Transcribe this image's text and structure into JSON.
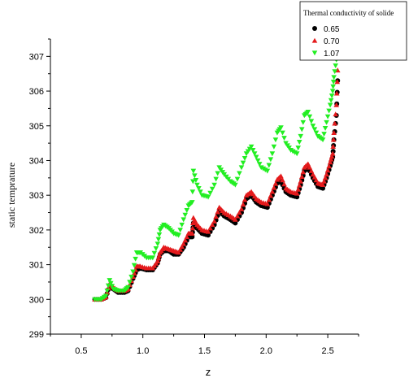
{
  "chart_data": {
    "type": "scatter",
    "xlabel": "z",
    "ylabel": "static temprature",
    "xlim": [
      0.25,
      2.75
    ],
    "ylim": [
      299,
      307.5
    ],
    "x_ticks": [
      "0.5",
      "1.0",
      "1.5",
      "2.0",
      "2.5"
    ],
    "y_ticks": [
      "299",
      "300",
      "301",
      "302",
      "303",
      "304",
      "305",
      "306",
      "307"
    ],
    "grid": false,
    "legend": {
      "title": "Thermal conductivity of solide",
      "placement": "top-right"
    },
    "series": [
      {
        "name": "0.65",
        "color": "#000000",
        "marker": "circle",
        "points": [
          [
            0.61,
            300.0
          ],
          [
            0.66,
            300.0
          ],
          [
            0.7,
            300.05
          ],
          [
            0.73,
            300.4
          ],
          [
            0.76,
            300.3
          ],
          [
            0.8,
            300.2
          ],
          [
            0.85,
            300.2
          ],
          [
            0.88,
            300.25
          ],
          [
            0.92,
            300.6
          ],
          [
            0.95,
            300.85
          ],
          [
            0.98,
            300.9
          ],
          [
            1.03,
            300.85
          ],
          [
            1.08,
            300.85
          ],
          [
            1.12,
            301.05
          ],
          [
            1.14,
            301.3
          ],
          [
            1.17,
            301.4
          ],
          [
            1.21,
            301.4
          ],
          [
            1.25,
            301.3
          ],
          [
            1.29,
            301.3
          ],
          [
            1.33,
            301.5
          ],
          [
            1.37,
            301.8
          ],
          [
            1.4,
            301.8
          ],
          [
            1.41,
            302.2
          ],
          [
            1.44,
            302.05
          ],
          [
            1.48,
            301.9
          ],
          [
            1.53,
            301.85
          ],
          [
            1.58,
            302.15
          ],
          [
            1.62,
            302.55
          ],
          [
            1.66,
            302.4
          ],
          [
            1.71,
            302.3
          ],
          [
            1.75,
            302.2
          ],
          [
            1.8,
            302.5
          ],
          [
            1.84,
            302.9
          ],
          [
            1.88,
            303.0
          ],
          [
            1.92,
            302.8
          ],
          [
            1.96,
            302.7
          ],
          [
            2.01,
            302.65
          ],
          [
            2.05,
            303.0
          ],
          [
            2.09,
            303.35
          ],
          [
            2.12,
            303.4
          ],
          [
            2.16,
            303.1
          ],
          [
            2.2,
            303.0
          ],
          [
            2.25,
            302.95
          ],
          [
            2.28,
            303.3
          ],
          [
            2.31,
            303.7
          ],
          [
            2.34,
            303.8
          ],
          [
            2.38,
            303.5
          ],
          [
            2.42,
            303.25
          ],
          [
            2.46,
            303.2
          ],
          [
            2.49,
            303.5
          ],
          [
            2.52,
            303.85
          ],
          [
            2.54,
            304.1
          ],
          [
            2.55,
            304.6
          ],
          [
            2.57,
            305.3
          ],
          [
            2.58,
            306.3
          ]
        ]
      },
      {
        "name": "0.70",
        "color": "#e41a1c",
        "marker": "triangle-up",
        "points": [
          [
            0.61,
            300.0
          ],
          [
            0.66,
            300.0
          ],
          [
            0.7,
            300.07
          ],
          [
            0.73,
            300.45
          ],
          [
            0.76,
            300.35
          ],
          [
            0.8,
            300.25
          ],
          [
            0.85,
            300.25
          ],
          [
            0.88,
            300.3
          ],
          [
            0.92,
            300.65
          ],
          [
            0.95,
            300.95
          ],
          [
            0.98,
            300.95
          ],
          [
            1.03,
            300.9
          ],
          [
            1.08,
            300.9
          ],
          [
            1.12,
            301.1
          ],
          [
            1.14,
            301.35
          ],
          [
            1.17,
            301.5
          ],
          [
            1.21,
            301.45
          ],
          [
            1.25,
            301.4
          ],
          [
            1.29,
            301.35
          ],
          [
            1.33,
            301.6
          ],
          [
            1.37,
            301.9
          ],
          [
            1.4,
            301.9
          ],
          [
            1.41,
            302.35
          ],
          [
            1.44,
            302.15
          ],
          [
            1.48,
            302.0
          ],
          [
            1.53,
            301.95
          ],
          [
            1.58,
            302.25
          ],
          [
            1.62,
            302.65
          ],
          [
            1.66,
            302.5
          ],
          [
            1.71,
            302.4
          ],
          [
            1.75,
            302.3
          ],
          [
            1.8,
            302.6
          ],
          [
            1.84,
            303.0
          ],
          [
            1.88,
            303.1
          ],
          [
            1.92,
            302.9
          ],
          [
            1.96,
            302.8
          ],
          [
            2.01,
            302.75
          ],
          [
            2.05,
            303.1
          ],
          [
            2.09,
            303.45
          ],
          [
            2.12,
            303.55
          ],
          [
            2.16,
            303.2
          ],
          [
            2.2,
            303.1
          ],
          [
            2.25,
            303.05
          ],
          [
            2.28,
            303.4
          ],
          [
            2.31,
            303.8
          ],
          [
            2.34,
            303.9
          ],
          [
            2.38,
            303.6
          ],
          [
            2.42,
            303.35
          ],
          [
            2.46,
            303.3
          ],
          [
            2.49,
            303.6
          ],
          [
            2.52,
            303.95
          ],
          [
            2.54,
            304.2
          ],
          [
            2.55,
            304.8
          ],
          [
            2.57,
            305.6
          ],
          [
            2.58,
            306.6
          ]
        ]
      },
      {
        "name": "1.07",
        "color": "#22ee22",
        "marker": "triangle-down",
        "points": [
          [
            0.61,
            300.0
          ],
          [
            0.66,
            300.0
          ],
          [
            0.7,
            300.1
          ],
          [
            0.73,
            300.55
          ],
          [
            0.76,
            300.3
          ],
          [
            0.8,
            300.25
          ],
          [
            0.85,
            300.25
          ],
          [
            0.88,
            300.35
          ],
          [
            0.92,
            300.8
          ],
          [
            0.95,
            301.35
          ],
          [
            0.98,
            301.35
          ],
          [
            1.03,
            301.2
          ],
          [
            1.08,
            301.2
          ],
          [
            1.12,
            301.6
          ],
          [
            1.14,
            302.0
          ],
          [
            1.17,
            302.15
          ],
          [
            1.21,
            302.05
          ],
          [
            1.25,
            301.9
          ],
          [
            1.29,
            301.85
          ],
          [
            1.33,
            302.3
          ],
          [
            1.37,
            302.7
          ],
          [
            1.4,
            302.8
          ],
          [
            1.41,
            303.7
          ],
          [
            1.44,
            303.3
          ],
          [
            1.48,
            303.0
          ],
          [
            1.53,
            302.95
          ],
          [
            1.58,
            303.3
          ],
          [
            1.62,
            303.8
          ],
          [
            1.66,
            303.6
          ],
          [
            1.71,
            303.4
          ],
          [
            1.75,
            303.3
          ],
          [
            1.8,
            303.8
          ],
          [
            1.84,
            304.2
          ],
          [
            1.88,
            304.4
          ],
          [
            1.92,
            304.1
          ],
          [
            1.96,
            303.8
          ],
          [
            2.01,
            303.7
          ],
          [
            2.05,
            304.2
          ],
          [
            2.09,
            304.8
          ],
          [
            2.12,
            304.95
          ],
          [
            2.16,
            304.5
          ],
          [
            2.2,
            304.3
          ],
          [
            2.25,
            304.2
          ],
          [
            2.28,
            304.7
          ],
          [
            2.31,
            305.3
          ],
          [
            2.34,
            305.4
          ],
          [
            2.38,
            305.0
          ],
          [
            2.42,
            304.7
          ],
          [
            2.46,
            304.6
          ],
          [
            2.49,
            305.1
          ],
          [
            2.52,
            305.6
          ],
          [
            2.54,
            306.0
          ],
          [
            2.55,
            306.4
          ],
          [
            2.57,
            306.9
          ],
          [
            2.58,
            307.2
          ]
        ]
      }
    ]
  }
}
